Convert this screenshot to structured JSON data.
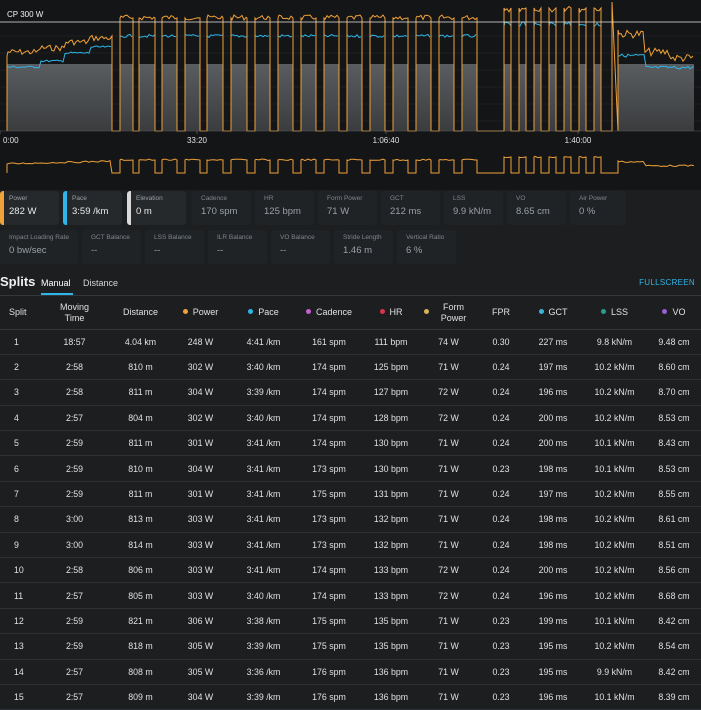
{
  "chart": {
    "cp_label": "CP 300 W",
    "x_ticks": [
      "0:00",
      "33:20",
      "1:06:40",
      "1:40:00"
    ]
  },
  "colors": {
    "power": "#f0a13a",
    "pace": "#2eb6e8",
    "elevation": "#d9d9d9",
    "cadence": "#c75fd0",
    "hr": "#d8344c",
    "form_power": "#d9b25a",
    "gct": "#3fb4d9",
    "lss": "#2a9c8c",
    "vo": "#9a5fd6",
    "accent": "#2eb6e8"
  },
  "metrics_row1": [
    {
      "label": "Power",
      "value": "282 W"
    },
    {
      "label": "Pace",
      "value": "3:59 /km"
    },
    {
      "label": "Elevation",
      "value": "0 m"
    },
    {
      "label": "Cadence",
      "value": "170 spm"
    },
    {
      "label": "HR",
      "value": "125 bpm"
    },
    {
      "label": "Form Power",
      "value": "71 W"
    },
    {
      "label": "GCT",
      "value": "212 ms"
    },
    {
      "label": "LSS",
      "value": "9.9 kN/m"
    },
    {
      "label": "VO",
      "value": "8.65 cm"
    },
    {
      "label": "Air Power",
      "value": "0 %"
    }
  ],
  "metrics_row2": [
    {
      "label": "Impact Loading Rate",
      "value": "0 bw/sec"
    },
    {
      "label": "GCT Balance",
      "value": "--"
    },
    {
      "label": "LSS Balance",
      "value": "--"
    },
    {
      "label": "ILR Balance",
      "value": "--"
    },
    {
      "label": "VO Balance",
      "value": "--"
    },
    {
      "label": "Stride Length",
      "value": "1.46 m"
    },
    {
      "label": "Vertical Ratio",
      "value": "6 %"
    }
  ],
  "splits": {
    "title": "Splits",
    "tabs": [
      "Manual",
      "Distance"
    ],
    "fullscreen": "FULLSCREEN",
    "columns": [
      "Split",
      "Moving Time",
      "Distance",
      "Power",
      "Pace",
      "Cadence",
      "HR",
      "Form Power",
      "FPR",
      "GCT",
      "LSS",
      "VO"
    ],
    "rows": [
      [
        "1",
        "18:57",
        "4.04 km",
        "248 W",
        "4:41 /km",
        "161 spm",
        "111 bpm",
        "74 W",
        "0.30",
        "227 ms",
        "9.8 kN/m",
        "9.48 cm"
      ],
      [
        "2",
        "2:58",
        "810 m",
        "302 W",
        "3:40 /km",
        "174 spm",
        "125 bpm",
        "71 W",
        "0.24",
        "197 ms",
        "10.2 kN/m",
        "8.60 cm"
      ],
      [
        "3",
        "2:58",
        "811 m",
        "304 W",
        "3:39 /km",
        "174 spm",
        "127 bpm",
        "72 W",
        "0.24",
        "196 ms",
        "10.2 kN/m",
        "8.70 cm"
      ],
      [
        "4",
        "2:57",
        "804 m",
        "302 W",
        "3:40 /km",
        "174 spm",
        "128 bpm",
        "72 W",
        "0.24",
        "200 ms",
        "10.2 kN/m",
        "8.53 cm"
      ],
      [
        "5",
        "2:59",
        "811 m",
        "301 W",
        "3:41 /km",
        "174 spm",
        "130 bpm",
        "71 W",
        "0.24",
        "200 ms",
        "10.1 kN/m",
        "8.43 cm"
      ],
      [
        "6",
        "2:59",
        "810 m",
        "304 W",
        "3:41 /km",
        "173 spm",
        "130 bpm",
        "71 W",
        "0.23",
        "198 ms",
        "10.1 kN/m",
        "8.53 cm"
      ],
      [
        "7",
        "2:59",
        "811 m",
        "301 W",
        "3:41 /km",
        "175 spm",
        "131 bpm",
        "71 W",
        "0.24",
        "197 ms",
        "10.2 kN/m",
        "8.55 cm"
      ],
      [
        "8",
        "3:00",
        "813 m",
        "303 W",
        "3:41 /km",
        "173 spm",
        "132 bpm",
        "71 W",
        "0.24",
        "198 ms",
        "10.2 kN/m",
        "8.61 cm"
      ],
      [
        "9",
        "3:00",
        "814 m",
        "303 W",
        "3:41 /km",
        "173 spm",
        "132 bpm",
        "71 W",
        "0.24",
        "198 ms",
        "10.2 kN/m",
        "8.51 cm"
      ],
      [
        "10",
        "2:58",
        "806 m",
        "303 W",
        "3:41 /km",
        "174 spm",
        "133 bpm",
        "72 W",
        "0.24",
        "200 ms",
        "10.2 kN/m",
        "8.56 cm"
      ],
      [
        "11",
        "2:57",
        "805 m",
        "303 W",
        "3:40 /km",
        "174 spm",
        "133 bpm",
        "72 W",
        "0.24",
        "196 ms",
        "10.2 kN/m",
        "8.68 cm"
      ],
      [
        "12",
        "2:59",
        "821 m",
        "306 W",
        "3:38 /km",
        "175 spm",
        "135 bpm",
        "71 W",
        "0.23",
        "199 ms",
        "10.1 kN/m",
        "8.42 cm"
      ],
      [
        "13",
        "2:59",
        "818 m",
        "305 W",
        "3:39 /km",
        "175 spm",
        "135 bpm",
        "71 W",
        "0.23",
        "195 ms",
        "10.2 kN/m",
        "8.54 cm"
      ],
      [
        "14",
        "2:57",
        "808 m",
        "305 W",
        "3:36 /km",
        "176 spm",
        "136 bpm",
        "71 W",
        "0.23",
        "195 ms",
        "9.9 kN/m",
        "8.42 cm"
      ],
      [
        "15",
        "2:57",
        "809 m",
        "304 W",
        "3:39 /km",
        "176 spm",
        "136 bpm",
        "71 W",
        "0.23",
        "196 ms",
        "10.1 kN/m",
        "8.39 cm"
      ]
    ]
  }
}
